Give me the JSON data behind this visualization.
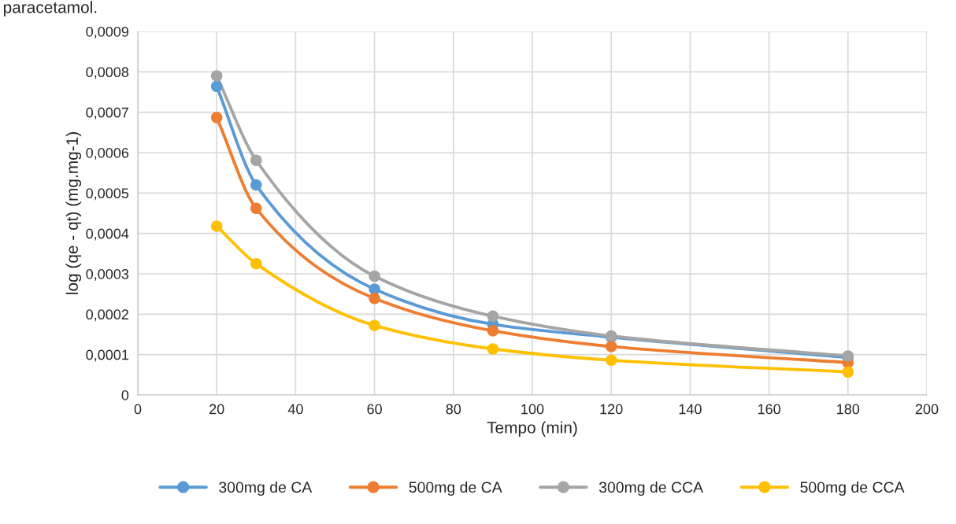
{
  "chart_data": {
    "type": "line",
    "xlabel": "Tempo (min)",
    "ylabel": "log (qe - qt) (mg.mg-1)",
    "annotations": [
      "paracetamol."
    ],
    "x": [
      20,
      30,
      60,
      90,
      120,
      180
    ],
    "series": [
      {
        "name": "300mg de CA",
        "color": "#5b9bd5",
        "values": [
          0.000764,
          0.00052,
          0.000262,
          0.000175,
          0.000143,
          9.3e-05
        ]
      },
      {
        "name": "500mg de CA",
        "color": "#ed7d31",
        "values": [
          0.000687,
          0.000462,
          0.000239,
          0.000159,
          0.00012,
          8e-05
        ]
      },
      {
        "name": "300mg de CCA",
        "color": "#a5a5a5",
        "values": [
          0.00079,
          0.000581,
          0.000294,
          0.000195,
          0.000146,
          9.65e-05
        ]
      },
      {
        "name": "500mg de CCA",
        "color": "#ffc000",
        "values": [
          0.000418,
          0.000325,
          0.000172,
          0.000114,
          8.6e-05,
          5.7e-05
        ]
      }
    ],
    "xlim": [
      0,
      200
    ],
    "xticks": [
      0,
      20,
      40,
      60,
      80,
      100,
      120,
      140,
      160,
      180,
      200
    ],
    "ylim": [
      0,
      0.0009
    ],
    "yticks": [
      0,
      {
        "value": 0.0001,
        "label": "0,0001"
      },
      {
        "value": 0.0002,
        "label": "0,0002"
      },
      {
        "value": 0.0003,
        "label": "0,0003"
      },
      {
        "value": 0.0004,
        "label": "0,0004"
      },
      {
        "value": 0.0005,
        "label": "0,0005"
      },
      {
        "value": 0.0006,
        "label": "0,0006"
      },
      {
        "value": 0.0007,
        "label": "0,0007"
      },
      {
        "value": 0.0008,
        "label": "0,0008"
      },
      {
        "value": 0.0009,
        "label": "0,0009"
      }
    ],
    "grid": true,
    "legend": "bottom",
    "marker": "circle",
    "line_style": "solid"
  }
}
